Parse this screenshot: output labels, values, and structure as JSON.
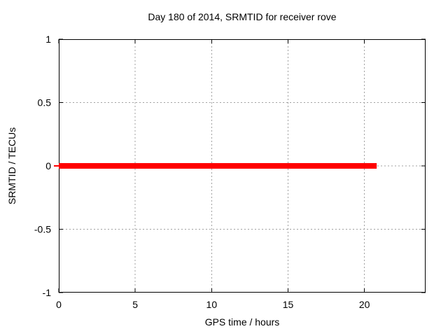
{
  "chart_data": {
    "type": "line",
    "title": "Day 180 of 2014, SRMTID for receiver rove",
    "xlabel": "GPS time / hours",
    "ylabel": "SRMTID / TECUs",
    "xlim": [
      0,
      24
    ],
    "ylim": [
      -1,
      1
    ],
    "xticks": [
      0,
      5,
      10,
      15,
      20
    ],
    "yticks": [
      -1,
      -0.5,
      0,
      0.5,
      1
    ],
    "grid": true,
    "legend": "none",
    "series": [
      {
        "name": "SRMTID",
        "x": [
          0,
          20.8
        ],
        "y": [
          0,
          0
        ],
        "color": "#ff0000",
        "linewidth": 8
      }
    ]
  },
  "colors": {
    "background": "#ffffff",
    "border": "#000000",
    "grid": "#a0a0a0",
    "line": "#ff0000"
  }
}
